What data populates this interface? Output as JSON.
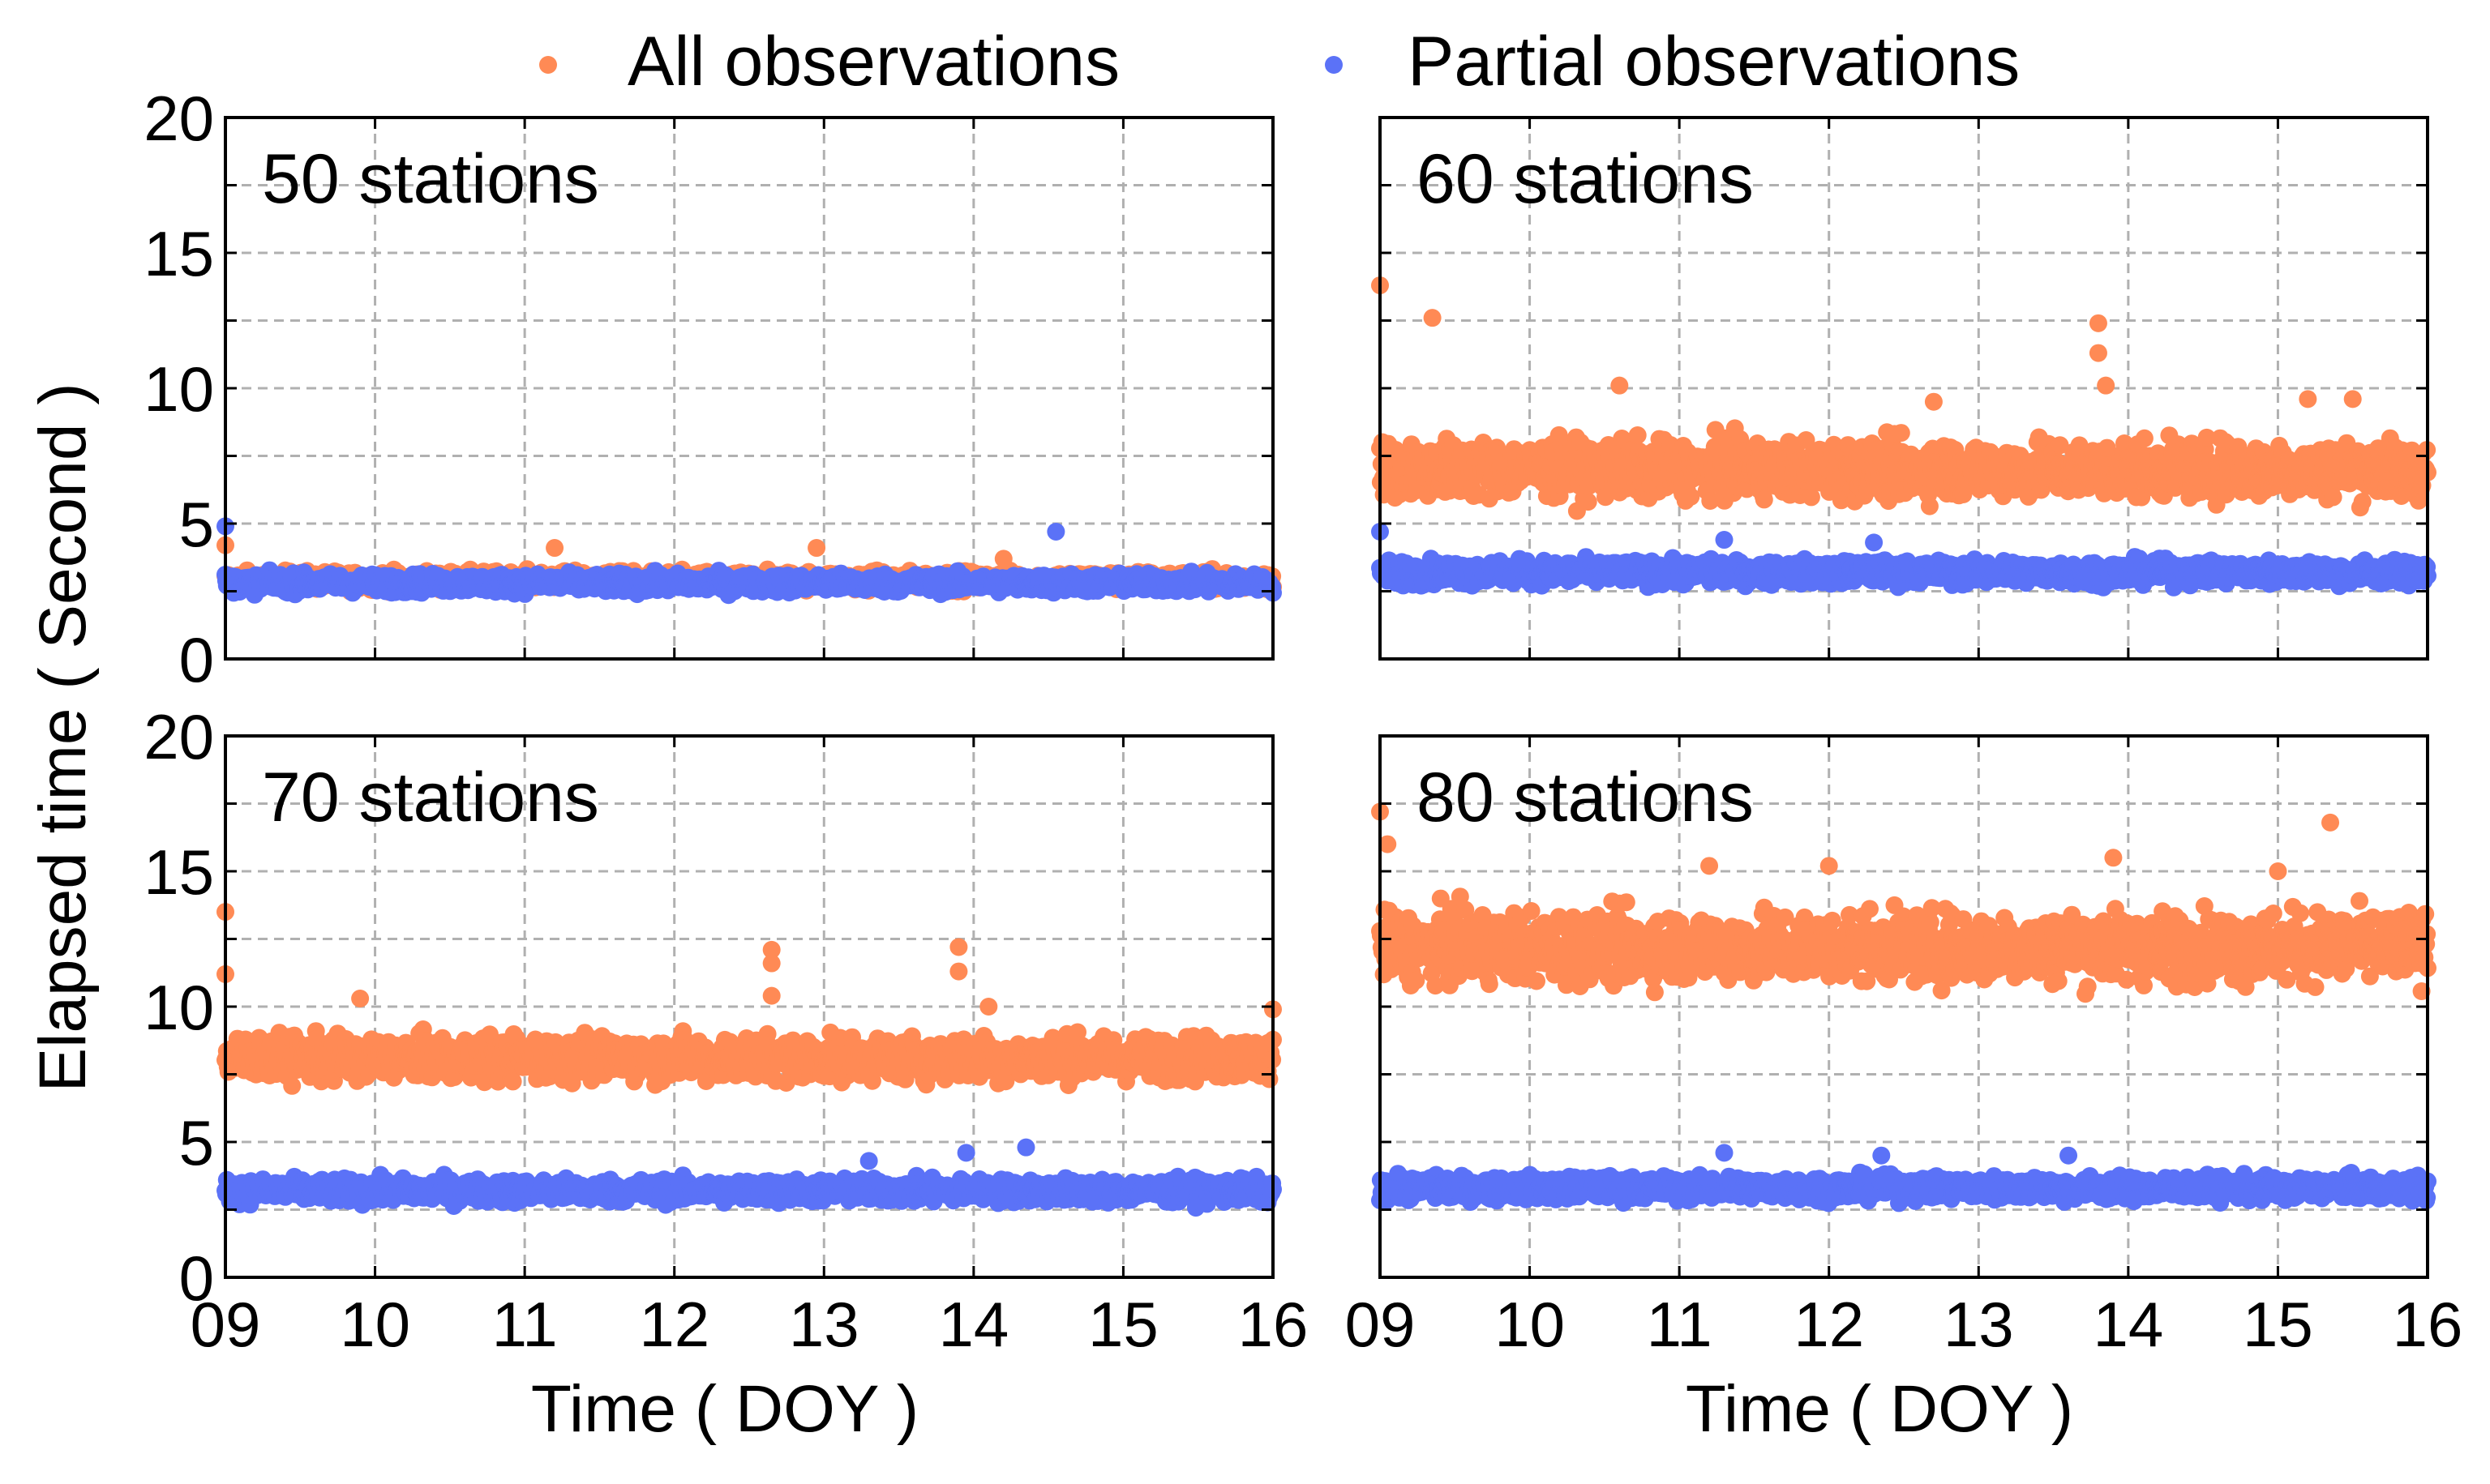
{
  "colors": {
    "all": "#FF8A55",
    "partial": "#5B72F7"
  },
  "legend": [
    {
      "name": "All observations",
      "color": "#FF8A55"
    },
    {
      "name": "Partial observations",
      "color": "#5B72F7"
    }
  ],
  "y_axis_label": "Elapsed time ( Second )",
  "chart_data": [
    {
      "type": "scatter",
      "title": "50 stations",
      "xlabel": "",
      "ylabel": "Elapsed time ( Second )",
      "xlim": [
        9,
        16
      ],
      "ylim": [
        0,
        20
      ],
      "xticks": [
        9,
        10,
        11,
        12,
        13,
        14,
        15,
        16
      ],
      "xtick_labels": [
        "09",
        "10",
        "11",
        "12",
        "13",
        "14",
        "15",
        "16"
      ],
      "yticks": [
        0,
        5,
        10,
        15,
        20
      ],
      "grid": true,
      "series": [
        {
          "name": "All observations",
          "band_center": 2.9,
          "band_spread": 0.35,
          "outliers": [
            {
              "x": 9.0,
              "y": 4.2
            },
            {
              "x": 11.2,
              "y": 4.1
            },
            {
              "x": 12.95,
              "y": 4.1
            },
            {
              "x": 14.2,
              "y": 3.7
            }
          ]
        },
        {
          "name": "Partial observations",
          "band_center": 2.8,
          "band_spread": 0.35,
          "outliers": [
            {
              "x": 9.0,
              "y": 4.9
            },
            {
              "x": 14.55,
              "y": 4.7
            }
          ]
        }
      ]
    },
    {
      "type": "scatter",
      "title": "60 stations",
      "xlabel": "",
      "ylabel": "",
      "xlim": [
        9,
        16
      ],
      "ylim": [
        0,
        20
      ],
      "xticks": [
        9,
        10,
        11,
        12,
        13,
        14,
        15,
        16
      ],
      "xtick_labels": [
        "09",
        "10",
        "11",
        "12",
        "13",
        "14",
        "15",
        "16"
      ],
      "yticks": [
        0,
        5,
        10,
        15,
        20
      ],
      "grid": true,
      "series": [
        {
          "name": "All observations",
          "band_center": 7.0,
          "band_spread": 1.1,
          "outliers": [
            {
              "x": 9.0,
              "y": 13.8
            },
            {
              "x": 9.35,
              "y": 12.6
            },
            {
              "x": 10.6,
              "y": 10.1
            },
            {
              "x": 12.7,
              "y": 9.5
            },
            {
              "x": 13.8,
              "y": 12.4
            },
            {
              "x": 13.8,
              "y": 11.3
            },
            {
              "x": 13.85,
              "y": 10.1
            },
            {
              "x": 15.2,
              "y": 9.6
            },
            {
              "x": 15.5,
              "y": 9.6
            }
          ]
        },
        {
          "name": "Partial observations",
          "band_center": 3.2,
          "band_spread": 0.45,
          "outliers": [
            {
              "x": 9.0,
              "y": 4.7
            },
            {
              "x": 11.3,
              "y": 4.4
            },
            {
              "x": 12.3,
              "y": 4.3
            }
          ]
        }
      ]
    },
    {
      "type": "scatter",
      "title": "70 stations",
      "xlabel": "Time ( DOY )",
      "ylabel": "Elapsed time ( Second )",
      "xlim": [
        9,
        16
      ],
      "ylim": [
        0,
        20
      ],
      "xticks": [
        9,
        10,
        11,
        12,
        13,
        14,
        15,
        16
      ],
      "xtick_labels": [
        "09",
        "10",
        "11",
        "12",
        "13",
        "14",
        "15",
        "16"
      ],
      "yticks": [
        0,
        5,
        10,
        15,
        20
      ],
      "grid": true,
      "series": [
        {
          "name": "All observations",
          "band_center": 8.1,
          "band_spread": 0.85,
          "outliers": [
            {
              "x": 9.0,
              "y": 13.5
            },
            {
              "x": 9.0,
              "y": 11.2
            },
            {
              "x": 12.65,
              "y": 12.1
            },
            {
              "x": 12.65,
              "y": 11.6
            },
            {
              "x": 12.65,
              "y": 10.4
            },
            {
              "x": 13.9,
              "y": 12.2
            },
            {
              "x": 13.9,
              "y": 11.3
            },
            {
              "x": 14.1,
              "y": 10.0
            },
            {
              "x": 9.9,
              "y": 10.3
            },
            {
              "x": 16.0,
              "y": 9.9
            }
          ]
        },
        {
          "name": "Partial observations",
          "band_center": 3.2,
          "band_spread": 0.45,
          "outliers": [
            {
              "x": 13.95,
              "y": 4.6
            },
            {
              "x": 14.35,
              "y": 4.8
            },
            {
              "x": 13.3,
              "y": 4.3
            }
          ]
        }
      ]
    },
    {
      "type": "scatter",
      "title": "80 stations",
      "xlabel": "Time ( DOY )",
      "ylabel": "",
      "xlim": [
        9,
        16
      ],
      "ylim": [
        0,
        20
      ],
      "xticks": [
        9,
        10,
        11,
        12,
        13,
        14,
        15,
        16
      ],
      "xtick_labels": [
        "09",
        "10",
        "11",
        "12",
        "13",
        "14",
        "15",
        "16"
      ],
      "yticks": [
        0,
        5,
        10,
        15,
        20
      ],
      "grid": true,
      "series": [
        {
          "name": "All observations",
          "band_center": 12.2,
          "band_spread": 1.35,
          "outliers": [
            {
              "x": 9.0,
              "y": 17.2
            },
            {
              "x": 9.05,
              "y": 16.0
            },
            {
              "x": 15.35,
              "y": 16.8
            },
            {
              "x": 13.9,
              "y": 15.5
            },
            {
              "x": 12.0,
              "y": 15.2
            },
            {
              "x": 11.2,
              "y": 15.2
            },
            {
              "x": 15.0,
              "y": 15.0
            }
          ]
        },
        {
          "name": "Partial observations",
          "band_center": 3.3,
          "band_spread": 0.45,
          "outliers": [
            {
              "x": 11.3,
              "y": 4.6
            },
            {
              "x": 12.35,
              "y": 4.5
            },
            {
              "x": 13.6,
              "y": 4.5
            }
          ]
        }
      ]
    }
  ]
}
